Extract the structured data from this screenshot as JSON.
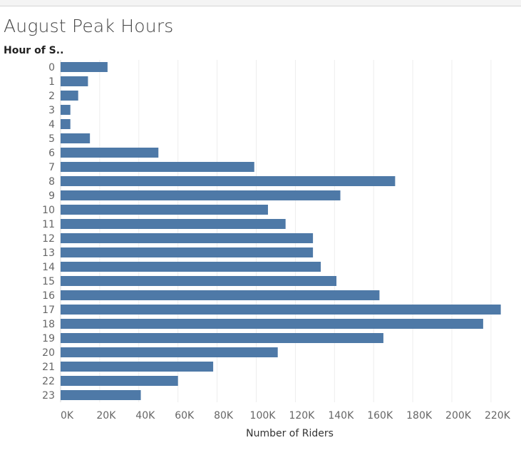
{
  "chart_data": {
    "type": "bar",
    "orientation": "horizontal",
    "title": "August Peak Hours",
    "ylabel": "Hour of S..",
    "xlabel": "Number of Riders",
    "categories": [
      "0",
      "1",
      "2",
      "3",
      "4",
      "5",
      "6",
      "7",
      "8",
      "9",
      "10",
      "11",
      "12",
      "13",
      "14",
      "15",
      "16",
      "17",
      "18",
      "19",
      "20",
      "21",
      "22",
      "23"
    ],
    "values": [
      24000,
      14000,
      9000,
      5000,
      5000,
      15000,
      50000,
      99000,
      171000,
      143000,
      106000,
      115000,
      129000,
      129000,
      133000,
      141000,
      163000,
      225000,
      216000,
      165000,
      111000,
      78000,
      60000,
      41000
    ],
    "xlim": [
      0,
      228000
    ],
    "x_ticks": [
      0,
      20000,
      40000,
      60000,
      80000,
      100000,
      120000,
      140000,
      160000,
      180000,
      200000,
      220000
    ],
    "x_tick_labels": [
      "0K",
      "20K",
      "40K",
      "60K",
      "80K",
      "100K",
      "120K",
      "140K",
      "160K",
      "180K",
      "200K",
      "220K"
    ],
    "grid": true,
    "bar_color": "#4e79a7"
  }
}
